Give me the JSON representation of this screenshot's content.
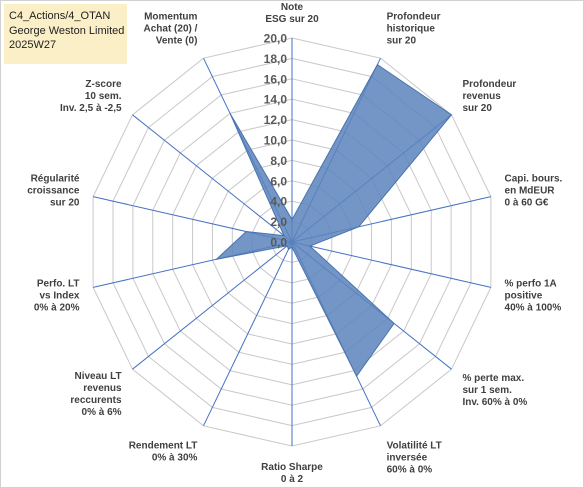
{
  "title_box": {
    "line1": "C4_Actions/4_OTAN",
    "line2": "George Weston Limited",
    "line3": "2025W27"
  },
  "chart_data": {
    "type": "radar",
    "range": [
      0,
      20
    ],
    "tick_labels": [
      "0,0",
      "2,0",
      "4,0",
      "6,0",
      "8,0",
      "10,0",
      "12,0",
      "14,0",
      "16,0",
      "18,0",
      "20,0"
    ],
    "axes": [
      {
        "label": [
          "Note",
          "ESG sur 20"
        ]
      },
      {
        "label": [
          "Profondeur",
          "historique",
          "sur 20"
        ]
      },
      {
        "label": [
          "Profondeur",
          "revenus",
          "sur 20"
        ]
      },
      {
        "label": [
          "Capi. bours.",
          "en MdEUR",
          "0 à 60 G€"
        ]
      },
      {
        "label": [
          "% perfo 1A",
          "positive",
          "40% à 100%"
        ]
      },
      {
        "label": [
          "% perte max.",
          "sur 1 sem.",
          "Inv. 60% à 0%"
        ]
      },
      {
        "label": [
          "Volatilité LT",
          "inversée",
          "60% à 0%"
        ]
      },
      {
        "label": [
          "Ratio Sharpe",
          "0 à 2"
        ]
      },
      {
        "label": [
          "Rendement LT",
          "0% à 30%"
        ]
      },
      {
        "label": [
          "Niveau LT",
          "revenus",
          "reccurents",
          "0% à 6%"
        ]
      },
      {
        "label": [
          "Perfo. LT",
          "vs Index",
          "0% à 20%"
        ]
      },
      {
        "label": [
          "Régularité",
          "croissance",
          "sur 20"
        ]
      },
      {
        "label": [
          "Z-score",
          "10 sem.",
          "Inv. 2,5 à -2,5"
        ]
      },
      {
        "label": [
          "Momentum",
          "Achat (20) /",
          "Vente (0)"
        ]
      }
    ],
    "series": [
      {
        "values": [
          2.2,
          19.3,
          20.0,
          6.7,
          1.8,
          12.8,
          14.6,
          0.5,
          0.8,
          0.6,
          7.6,
          4.6,
          1.0,
          14.0
        ],
        "color": "#5b84bd"
      }
    ],
    "grid": true,
    "legend": "none"
  }
}
